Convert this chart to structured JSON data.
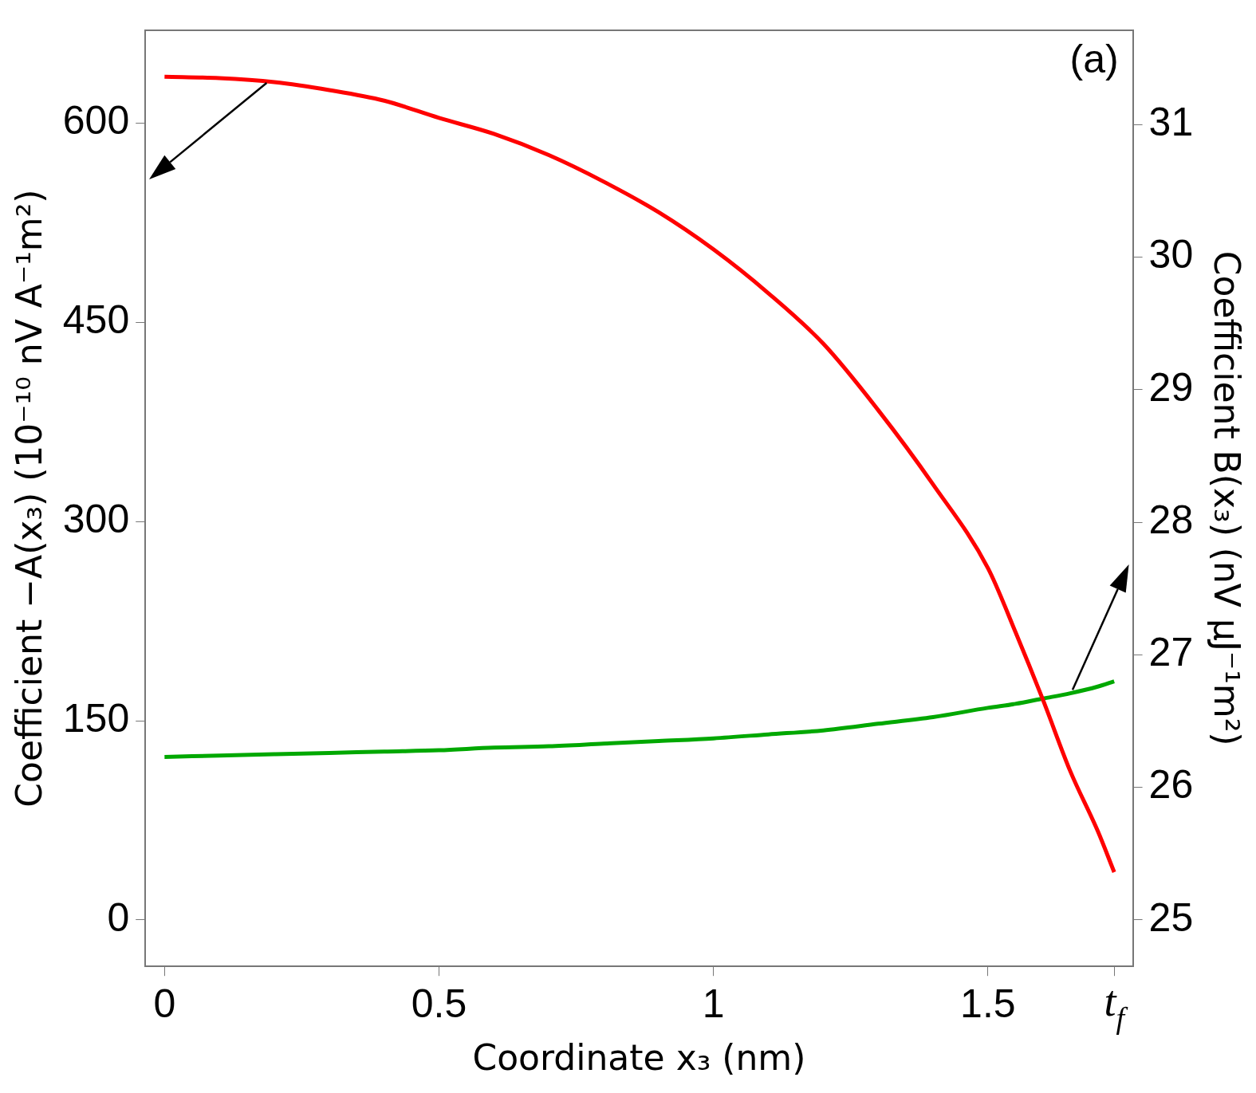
{
  "chart_data": {
    "type": "line",
    "xlabel": "Coordinate x₃ (nm)",
    "ylabel": "Coefficient −A(x₃) (10⁻¹⁰ nV A⁻¹m²)",
    "y2label": "Coefficient B(x₃) (nV μJ⁻¹m²)",
    "annotations": [
      "(a)"
    ],
    "x": [
      0,
      0.1,
      0.2,
      0.3,
      0.4,
      0.5,
      0.6,
      0.7,
      0.8,
      0.9,
      1.0,
      1.1,
      1.2,
      1.3,
      1.4,
      1.5,
      1.55,
      1.6,
      1.65,
      1.7,
      1.73
    ],
    "series": [
      {
        "color": "#ff0000",
        "axis": "y",
        "values": [
          635,
          634,
          631,
          625,
          617,
          604,
          592,
          576,
          556,
          533,
          505,
          472,
          434,
          384,
          328,
          265,
          217,
          166,
          112,
          67,
          36
        ]
      },
      {
        "color": "#00a800",
        "axis": "y2",
        "values": [
          26.23,
          26.24,
          26.25,
          26.26,
          26.27,
          26.28,
          26.3,
          26.31,
          26.33,
          26.35,
          26.37,
          26.4,
          26.43,
          26.48,
          26.53,
          26.6,
          26.63,
          26.67,
          26.71,
          26.76,
          26.8
        ]
      }
    ],
    "xlim": [
      -0.035,
      1.764
    ],
    "xticks": [
      0,
      0.5,
      1,
      1.5,
      {
        "value": 1.73,
        "label": "t$_{f}$"
      }
    ],
    "ylim": [
      -35,
      670
    ],
    "yticks": [
      0,
      150,
      300,
      450,
      600
    ],
    "y2lim": [
      24.65,
      31.71
    ],
    "y2ticks": [
      25,
      26,
      27,
      28,
      29,
      30,
      31
    ],
    "grid": false,
    "legend": false,
    "marker": "none"
  }
}
